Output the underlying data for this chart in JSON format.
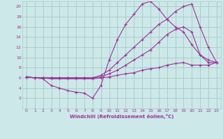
{
  "bg_color": "#cde8e8",
  "grid_color": "#aacccc",
  "line_color": "#993399",
  "xlabel": "Windchill (Refroidissement éolien,°C)",
  "xlim": [
    -0.5,
    23.5
  ],
  "ylim": [
    0,
    21
  ],
  "xticks": [
    0,
    1,
    2,
    3,
    4,
    5,
    6,
    7,
    8,
    9,
    10,
    11,
    12,
    13,
    14,
    15,
    16,
    17,
    18,
    19,
    20,
    21,
    22,
    23
  ],
  "yticks": [
    2,
    4,
    6,
    8,
    10,
    12,
    14,
    16,
    18,
    20
  ],
  "series": [
    {
      "x": [
        0,
        1,
        2,
        3,
        4,
        5,
        6,
        7,
        8,
        9,
        10,
        11,
        12,
        13,
        14,
        15,
        16,
        17,
        18,
        19,
        20,
        21,
        22,
        23
      ],
      "y": [
        6.2,
        6.0,
        5.8,
        4.5,
        4.0,
        3.5,
        3.2,
        3.0,
        2.0,
        4.5,
        9.5,
        13.5,
        16.5,
        18.5,
        20.5,
        21.0,
        19.5,
        17.5,
        16.0,
        15.0,
        12.5,
        10.5,
        9.0,
        9.0
      ]
    },
    {
      "x": [
        0,
        1,
        2,
        3,
        4,
        5,
        6,
        7,
        8,
        9,
        10,
        11,
        12,
        13,
        14,
        15,
        16,
        17,
        18,
        19,
        20,
        21,
        22,
        23
      ],
      "y": [
        6.2,
        6.0,
        6.0,
        6.0,
        6.0,
        6.0,
        6.0,
        6.0,
        6.0,
        6.5,
        7.5,
        9.0,
        10.5,
        12.0,
        13.5,
        15.0,
        16.5,
        17.5,
        19.0,
        20.0,
        20.5,
        16.0,
        12.0,
        9.0
      ]
    },
    {
      "x": [
        0,
        1,
        2,
        3,
        4,
        5,
        6,
        7,
        8,
        9,
        10,
        11,
        12,
        13,
        14,
        15,
        16,
        17,
        18,
        19,
        20,
        21,
        22,
        23
      ],
      "y": [
        6.2,
        6.0,
        6.0,
        6.0,
        6.0,
        6.0,
        6.0,
        6.0,
        6.0,
        6.2,
        6.8,
        7.5,
        8.5,
        9.5,
        10.5,
        11.5,
        13.0,
        14.5,
        15.5,
        16.0,
        15.0,
        10.5,
        9.5,
        9.0
      ]
    },
    {
      "x": [
        0,
        1,
        2,
        3,
        4,
        5,
        6,
        7,
        8,
        9,
        10,
        11,
        12,
        13,
        14,
        15,
        16,
        17,
        18,
        19,
        20,
        21,
        22,
        23
      ],
      "y": [
        6.2,
        6.0,
        6.0,
        5.8,
        5.8,
        5.8,
        5.8,
        5.8,
        5.8,
        6.0,
        6.2,
        6.5,
        6.8,
        7.0,
        7.5,
        7.8,
        8.0,
        8.5,
        8.8,
        9.0,
        8.5,
        8.5,
        8.5,
        9.0
      ]
    }
  ]
}
